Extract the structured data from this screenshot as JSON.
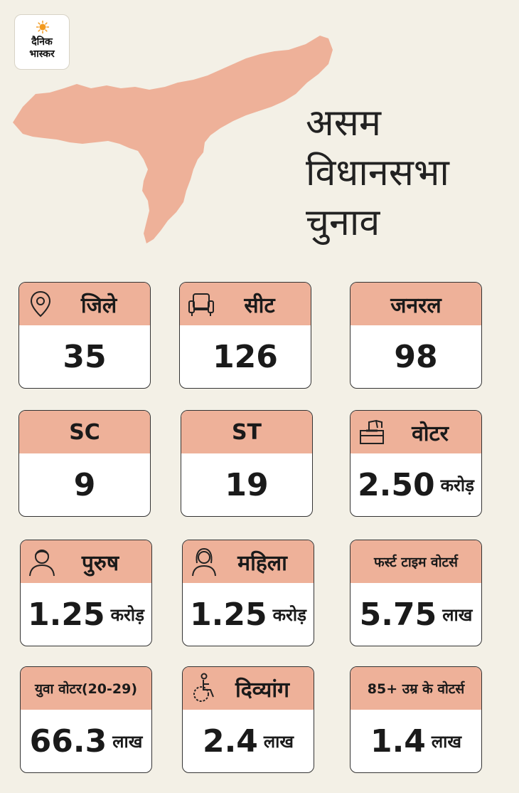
{
  "brand": {
    "logo_text_1": "दैनिक",
    "logo_text_2": "भास्कर"
  },
  "title": {
    "line1": "असम",
    "line2": "विधानसभा",
    "line3": "चुनाव"
  },
  "colors": {
    "background": "#f3f0e6",
    "map": "#eeb199",
    "card_header": "#eeb199",
    "border": "#333333"
  },
  "cards": [
    {
      "label": "जिले",
      "icon": "location-pin-icon",
      "value": "35",
      "unit": ""
    },
    {
      "label": "सीट",
      "icon": "armchair-icon",
      "value": "126",
      "unit": ""
    },
    {
      "label": "जनरल",
      "icon": "",
      "value": "98",
      "unit": ""
    },
    {
      "label": "SC",
      "icon": "",
      "value": "9",
      "unit": ""
    },
    {
      "label": "ST",
      "icon": "",
      "value": "19",
      "unit": ""
    },
    {
      "label": "वोटर",
      "icon": "ballot-box-icon",
      "value": "2.50",
      "unit": "करोड़"
    },
    {
      "label": "पुरुष",
      "icon": "man-icon",
      "value": "1.25",
      "unit": "करोड़"
    },
    {
      "label": "महिला",
      "icon": "woman-icon",
      "value": "1.25",
      "unit": "करोड़"
    },
    {
      "label": "फर्स्ट टाइम वोटर्स",
      "icon": "",
      "value": "5.75",
      "unit": "लाख"
    },
    {
      "label": "युवा वोटर(20-29)",
      "icon": "",
      "value": "66.3",
      "unit": "लाख"
    },
    {
      "label": "दिव्यांग",
      "icon": "wheelchair-icon",
      "value": "2.4",
      "unit": "लाख"
    },
    {
      "label": "85+ उम्र के वोटर्स",
      "icon": "",
      "value": "1.4",
      "unit": "लाख"
    }
  ]
}
